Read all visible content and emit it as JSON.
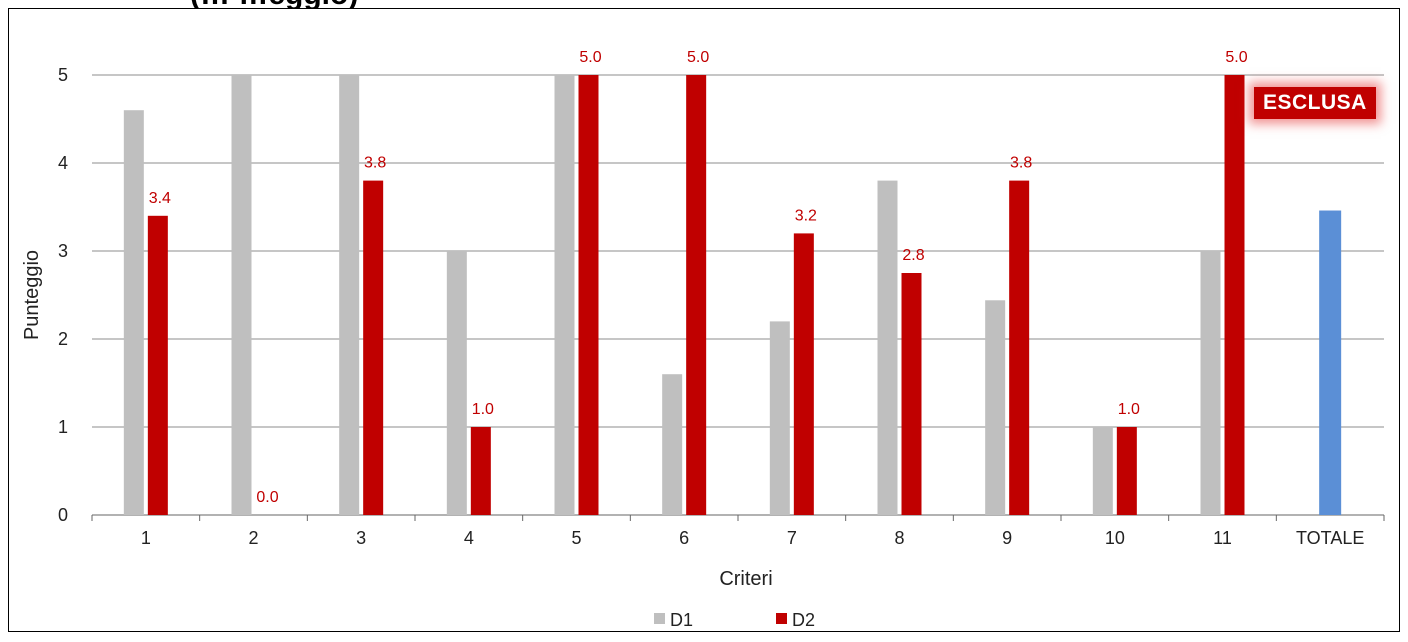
{
  "header": {
    "title_fragment": "(… …eggio)"
  },
  "badge": {
    "text": "ESCLUSA"
  },
  "chart_data": {
    "type": "bar",
    "xlabel": "Criteri",
    "ylabel": "Punteggio",
    "ylim": [
      0,
      5
    ],
    "yticks": [
      0,
      1,
      2,
      3,
      4,
      5
    ],
    "grid": true,
    "legend_position": "bottom",
    "categories": [
      "1",
      "2",
      "3",
      "4",
      "5",
      "6",
      "7",
      "8",
      "9",
      "10",
      "11",
      "TOTALE"
    ],
    "series": [
      {
        "name": "D1",
        "color": "#bfbfbf",
        "values": [
          4.6,
          5.0,
          5.0,
          3.0,
          5.0,
          1.6,
          2.2,
          3.8,
          2.44,
          1.0,
          3.0,
          null
        ]
      },
      {
        "name": "D2",
        "color": "#c00000",
        "values": [
          3.4,
          0.0,
          3.8,
          1.0,
          5.0,
          5.0,
          3.2,
          2.75,
          3.8,
          1.0,
          5.0,
          null
        ]
      }
    ],
    "data_labels": [
      "3.4",
      "0.0",
      "3.8",
      "1.0",
      "5.0",
      "5.0",
      "3.2",
      "2.8",
      "3.8",
      "1.0",
      "5.0",
      ""
    ],
    "totale": {
      "value": 3.46,
      "color": "#5b8fd6"
    }
  }
}
